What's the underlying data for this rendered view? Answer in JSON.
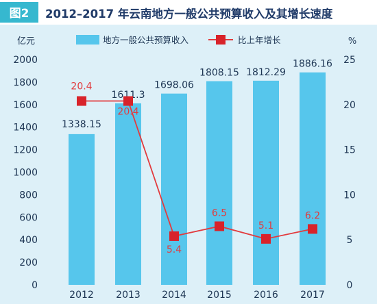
{
  "figure_label": "图2",
  "title": "2012–2017 年云南地方一般公共预算收入及其增长速度",
  "colors": {
    "background": "#ddf0f8",
    "header_bg": "#ffffff",
    "badge": "#36b8cf",
    "bar": "#56c6ec",
    "line": "#e23b3e",
    "marker": "#d8232a",
    "axis_text": "#1d3553",
    "title_text": "#1f3a68"
  },
  "chart_data": {
    "type": "bar",
    "title": "2012–2017 年云南地方一般公共预算收入及其增长速度",
    "categories": [
      "2012",
      "2013",
      "2014",
      "2015",
      "2016",
      "2017"
    ],
    "left_axis": {
      "unit": "亿元",
      "range": [
        0,
        2000
      ],
      "ticks": [
        "0",
        "200",
        "400",
        "600",
        "800",
        "1000",
        "1200",
        "1400",
        "1600",
        "1800",
        "2000"
      ]
    },
    "right_axis": {
      "unit": "%",
      "range": [
        0,
        25
      ],
      "ticks": [
        "0",
        "5",
        "10",
        "15",
        "20",
        "25"
      ]
    },
    "series": [
      {
        "name": "地方一般公共预算收入",
        "type": "bar",
        "axis": "left",
        "values": [
          1338.15,
          1611.3,
          1698.06,
          1808.15,
          1812.29,
          1886.16
        ],
        "labels": [
          "1338.15",
          "1611.3",
          "1698.06",
          "1808.15",
          "1812.29",
          "1886.16"
        ]
      },
      {
        "name": "比上年增长",
        "type": "line",
        "axis": "right",
        "values": [
          20.4,
          20.4,
          5.4,
          6.5,
          5.1,
          6.2
        ],
        "labels": [
          "20.4",
          "20.4",
          "5.4",
          "6.5",
          "5.1",
          "6.2"
        ]
      }
    ],
    "legend": "top",
    "grid": false
  }
}
